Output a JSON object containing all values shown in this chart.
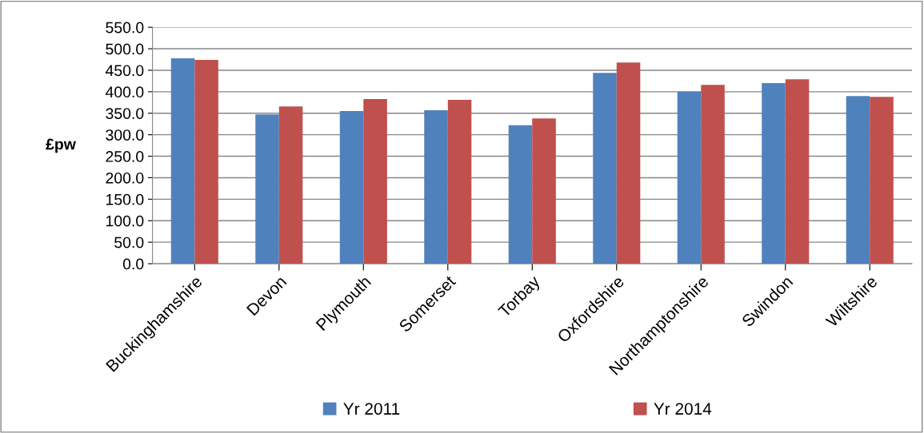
{
  "chart_data": {
    "type": "bar",
    "ylabel": "£pw",
    "categories": [
      "Buckinghamshire",
      "Devon",
      "Plymouth",
      "Somerset",
      "Torbay",
      "Oxfordshire",
      "Northamptonshire",
      "Swindon",
      "Wiltshire"
    ],
    "series": [
      {
        "name": "Yr 2011",
        "color": "#4f81bd",
        "values": [
          478,
          347,
          355,
          357,
          322,
          444,
          400,
          420,
          390
        ]
      },
      {
        "name": "Yr 2014",
        "color": "#c0504d",
        "values": [
          474,
          366,
          383,
          381,
          338,
          468,
          416,
          429,
          388
        ]
      }
    ],
    "ylim": [
      0,
      550
    ],
    "yticks": [
      {
        "value": 0,
        "label": "0.0"
      },
      {
        "value": 50,
        "label": "50.0"
      },
      {
        "value": 100,
        "label": "100.0"
      },
      {
        "value": 150,
        "label": "150.0"
      },
      {
        "value": 200,
        "label": "200.0"
      },
      {
        "value": 250,
        "label": "250.0"
      },
      {
        "value": 300,
        "label": "300.0"
      },
      {
        "value": 350,
        "label": "350.0"
      },
      {
        "value": 400,
        "label": "400.0"
      },
      {
        "value": 450,
        "label": "450.0"
      },
      {
        "value": 500,
        "label": "500.0"
      },
      {
        "value": 550,
        "label": "550.0"
      }
    ],
    "grid": "y",
    "legend": "bottom"
  }
}
